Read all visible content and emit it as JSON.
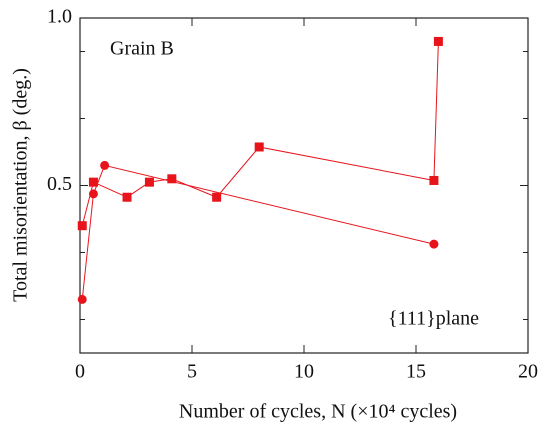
{
  "chart_data": {
    "type": "line",
    "annotations": [
      "Grain B",
      "{111}plane"
    ],
    "xlabel": "Number of cycles, N (×10⁴ cycles)",
    "ylabel": "Total misorientation, β (deg.)",
    "xlim": [
      0,
      20
    ],
    "xticks": [
      0,
      5,
      10,
      15,
      20
    ],
    "ylim": [
      0,
      1
    ],
    "yticks": [
      0.5,
      {
        "value": 1,
        "label": "1.0"
      }
    ],
    "yminorticks": [
      0.1,
      0.3,
      0.7,
      0.9
    ],
    "series": [
      {
        "marker": "square",
        "color": "#e8141c",
        "x": [
          0.1,
          0.6,
          2.1,
          3.1,
          4.1,
          6.1,
          8.0,
          15.8,
          16.0
        ],
        "values": [
          0.38,
          0.51,
          0.465,
          0.51,
          0.52,
          0.465,
          0.615,
          0.515,
          0.93
        ]
      },
      {
        "marker": "circle",
        "color": "#e8141c",
        "x": [
          0.1,
          0.6,
          1.1,
          15.8
        ],
        "values": [
          0.16,
          0.475,
          0.56,
          0.325
        ]
      }
    ]
  }
}
